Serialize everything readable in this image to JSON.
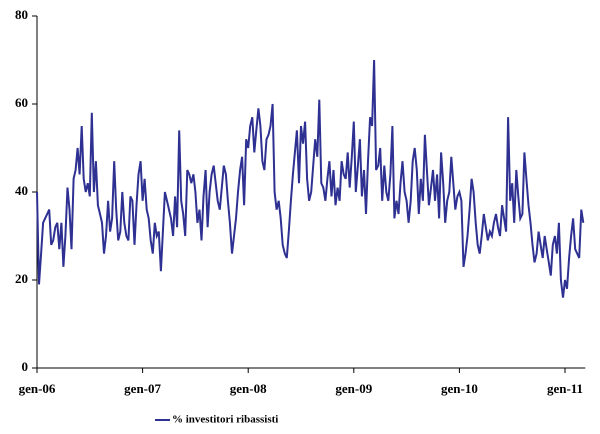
{
  "chart_data": {
    "type": "line",
    "categories": [
      "gen-06",
      null,
      null,
      null,
      null,
      null,
      null,
      null,
      null,
      null,
      null,
      null,
      null,
      null,
      null,
      null,
      null,
      null,
      null,
      null,
      null,
      null,
      null,
      null,
      null,
      null,
      null,
      null,
      null,
      null,
      null,
      null,
      null,
      null,
      null,
      null,
      null,
      null,
      null,
      null,
      null,
      null,
      null,
      null,
      null,
      null,
      null,
      null,
      null,
      null,
      null,
      null,
      "gen-07",
      null,
      null,
      null,
      null,
      null,
      null,
      null,
      null,
      null,
      null,
      null,
      null,
      null,
      null,
      null,
      null,
      null,
      null,
      null,
      null,
      null,
      null,
      null,
      null,
      null,
      null,
      null,
      null,
      null,
      null,
      null,
      null,
      null,
      null,
      null,
      null,
      null,
      null,
      null,
      null,
      null,
      null,
      null,
      null,
      null,
      null,
      null,
      null,
      null,
      null,
      null,
      "gen-08",
      null,
      null,
      null,
      null,
      null,
      null,
      null,
      null,
      null,
      null,
      null,
      null,
      null,
      null,
      null,
      null,
      null,
      null,
      null,
      null,
      null,
      null,
      null,
      null,
      null,
      null,
      null,
      null,
      null,
      null,
      null,
      null,
      null,
      null,
      null,
      null,
      null,
      null,
      null,
      null,
      null,
      null,
      null,
      null,
      null,
      null,
      null,
      null,
      null,
      null,
      null,
      "gen-09",
      null,
      null,
      null,
      null,
      null,
      null,
      null,
      null,
      null,
      null,
      null,
      null,
      null,
      null,
      null,
      null,
      null,
      null,
      null,
      null,
      null,
      null,
      null,
      null,
      null,
      null,
      null,
      null,
      null,
      null,
      null,
      null,
      null,
      null,
      null,
      null,
      null,
      null,
      null,
      null,
      null,
      null,
      null,
      null,
      null,
      null,
      null,
      null,
      null,
      null,
      null,
      "gen-10",
      null,
      null,
      null,
      null,
      null,
      null,
      null,
      null,
      null,
      null,
      null,
      null,
      null,
      null,
      null,
      null,
      null,
      null,
      null,
      null,
      null,
      null,
      null,
      null,
      null,
      null,
      null,
      null,
      null,
      null,
      null,
      null,
      null,
      null,
      null,
      null,
      null,
      null,
      null,
      null,
      null,
      null,
      null,
      null,
      null,
      null,
      null,
      null,
      null,
      null,
      null,
      "gen-11",
      null,
      null,
      null,
      null,
      null,
      null,
      null,
      null,
      null
    ],
    "series": [
      {
        "name": "% investitori ribassisti",
        "color": "#2e3192",
        "values": [
          40,
          19,
          26,
          33,
          34,
          35,
          36,
          28,
          29,
          32,
          33,
          27,
          33,
          23,
          30,
          41,
          36,
          27,
          43,
          45,
          50,
          44,
          55,
          43,
          40,
          42,
          39,
          58,
          40,
          47,
          37,
          35,
          33,
          26,
          30,
          38,
          31,
          34,
          47,
          36,
          29,
          31,
          40,
          33,
          30,
          29,
          39,
          38,
          28,
          37,
          44,
          47,
          38,
          43,
          36,
          34,
          29,
          26,
          33,
          30,
          31,
          22,
          31,
          40,
          38,
          36,
          34,
          30,
          39,
          32,
          54,
          38,
          35,
          30,
          45,
          44,
          42,
          44,
          40,
          33,
          36,
          29,
          39,
          45,
          32,
          40,
          44,
          46,
          42,
          38,
          36,
          41,
          46,
          44,
          38,
          33,
          26,
          30,
          34,
          40,
          45,
          48,
          37,
          52,
          50,
          55,
          57,
          49,
          54,
          59,
          55,
          47,
          45,
          52,
          53,
          55,
          60,
          40,
          36,
          38,
          34,
          28,
          26,
          25,
          31,
          38,
          44,
          49,
          54,
          42,
          55,
          51,
          56,
          43,
          38,
          40,
          46,
          52,
          48,
          61,
          42,
          41,
          38,
          43,
          47,
          39,
          45,
          37,
          41,
          38,
          47,
          44,
          43,
          49,
          41,
          48,
          56,
          40,
          46,
          52,
          39,
          45,
          35,
          47,
          57,
          55,
          70,
          45,
          46,
          50,
          38,
          46,
          40,
          38,
          44,
          55,
          34,
          38,
          35,
          42,
          47,
          40,
          38,
          33,
          38,
          47,
          50,
          45,
          35,
          43,
          38,
          53,
          45,
          37,
          41,
          45,
          38,
          44,
          34,
          49,
          42,
          33,
          38,
          40,
          48,
          42,
          36,
          39,
          40,
          38,
          23,
          26,
          30,
          36,
          43,
          40,
          33,
          28,
          26,
          30,
          35,
          32,
          29,
          31,
          30,
          33,
          35,
          32,
          30,
          37,
          34,
          31,
          57,
          38,
          42,
          33,
          45,
          39,
          34,
          35,
          49,
          43,
          37,
          33,
          28,
          24,
          26,
          31,
          28,
          25,
          30,
          27,
          24,
          21,
          28,
          30,
          26,
          33,
          20,
          16,
          20,
          18,
          25,
          30,
          34,
          27,
          26,
          25,
          36,
          33
        ]
      }
    ],
    "ylim": [
      0,
      80
    ],
    "yticks": [
      0,
      20,
      40,
      60,
      80
    ],
    "grid": false,
    "legend": "bottom"
  }
}
